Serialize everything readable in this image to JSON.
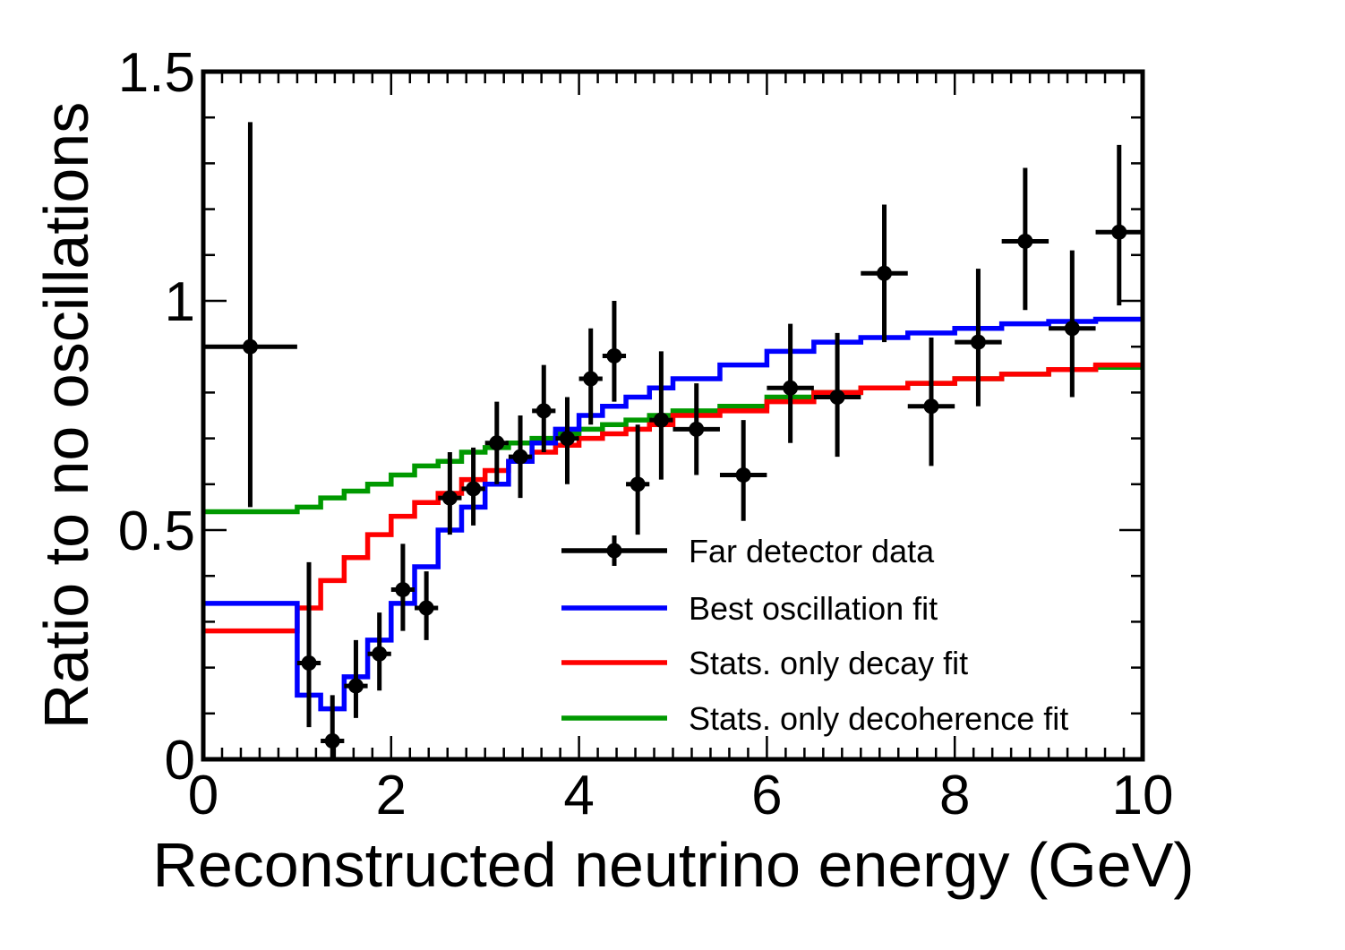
{
  "chart_data": {
    "type": "histogram_with_errorbars",
    "xlabel": "Reconstructed neutrino energy (GeV)",
    "ylabel": "Ratio to no oscillations",
    "xlim": [
      0,
      10
    ],
    "ylim": [
      0,
      1.5
    ],
    "x_ticks": [
      0,
      2,
      4,
      6,
      8,
      10
    ],
    "x_tick_labels": [
      "0",
      "2",
      "4",
      "6",
      "8",
      "10"
    ],
    "y_ticks": [
      0,
      0.5,
      1,
      1.5
    ],
    "y_tick_labels": [
      "0",
      "0.5",
      "1",
      "1.5"
    ],
    "legend_position": "bottom-right",
    "data_points": {
      "name": "Far detector data",
      "color": "#000000",
      "points": [
        {
          "x": 0.5,
          "xerr": 0.5,
          "y": 0.9,
          "yerr_low": 0.35,
          "yerr_high": 0.49
        },
        {
          "x": 1.125,
          "xerr": 0.125,
          "y": 0.21,
          "yerr_low": 0.14,
          "yerr_high": 0.22
        },
        {
          "x": 1.375,
          "xerr": 0.125,
          "y": 0.04,
          "yerr_low": 0.04,
          "yerr_high": 0.1
        },
        {
          "x": 1.625,
          "xerr": 0.125,
          "y": 0.16,
          "yerr_low": 0.07,
          "yerr_high": 0.1
        },
        {
          "x": 1.875,
          "xerr": 0.125,
          "y": 0.23,
          "yerr_low": 0.08,
          "yerr_high": 0.09
        },
        {
          "x": 2.125,
          "xerr": 0.125,
          "y": 0.37,
          "yerr_low": 0.09,
          "yerr_high": 0.1
        },
        {
          "x": 2.375,
          "xerr": 0.125,
          "y": 0.33,
          "yerr_low": 0.07,
          "yerr_high": 0.08
        },
        {
          "x": 2.625,
          "xerr": 0.125,
          "y": 0.57,
          "yerr_low": 0.08,
          "yerr_high": 0.1
        },
        {
          "x": 2.875,
          "xerr": 0.125,
          "y": 0.59,
          "yerr_low": 0.08,
          "yerr_high": 0.09
        },
        {
          "x": 3.125,
          "xerr": 0.125,
          "y": 0.69,
          "yerr_low": 0.09,
          "yerr_high": 0.09
        },
        {
          "x": 3.375,
          "xerr": 0.125,
          "y": 0.66,
          "yerr_low": 0.09,
          "yerr_high": 0.09
        },
        {
          "x": 3.625,
          "xerr": 0.125,
          "y": 0.76,
          "yerr_low": 0.09,
          "yerr_high": 0.1
        },
        {
          "x": 3.875,
          "xerr": 0.125,
          "y": 0.7,
          "yerr_low": 0.1,
          "yerr_high": 0.09
        },
        {
          "x": 4.125,
          "xerr": 0.125,
          "y": 0.83,
          "yerr_low": 0.1,
          "yerr_high": 0.11
        },
        {
          "x": 4.375,
          "xerr": 0.125,
          "y": 0.88,
          "yerr_low": 0.1,
          "yerr_high": 0.12
        },
        {
          "x": 4.625,
          "xerr": 0.125,
          "y": 0.6,
          "yerr_low": 0.11,
          "yerr_high": 0.13
        },
        {
          "x": 4.875,
          "xerr": 0.125,
          "y": 0.74,
          "yerr_low": 0.13,
          "yerr_high": 0.15
        },
        {
          "x": 5.25,
          "xerr": 0.25,
          "y": 0.72,
          "yerr_low": 0.1,
          "yerr_high": 0.1
        },
        {
          "x": 5.75,
          "xerr": 0.25,
          "y": 0.62,
          "yerr_low": 0.1,
          "yerr_high": 0.12
        },
        {
          "x": 6.25,
          "xerr": 0.25,
          "y": 0.81,
          "yerr_low": 0.12,
          "yerr_high": 0.14
        },
        {
          "x": 6.75,
          "xerr": 0.25,
          "y": 0.79,
          "yerr_low": 0.13,
          "yerr_high": 0.14
        },
        {
          "x": 7.25,
          "xerr": 0.25,
          "y": 1.06,
          "yerr_low": 0.15,
          "yerr_high": 0.15
        },
        {
          "x": 7.75,
          "xerr": 0.25,
          "y": 0.77,
          "yerr_low": 0.13,
          "yerr_high": 0.15
        },
        {
          "x": 8.25,
          "xerr": 0.25,
          "y": 0.91,
          "yerr_low": 0.14,
          "yerr_high": 0.16
        },
        {
          "x": 8.75,
          "xerr": 0.25,
          "y": 1.13,
          "yerr_low": 0.15,
          "yerr_high": 0.16
        },
        {
          "x": 9.25,
          "xerr": 0.25,
          "y": 0.94,
          "yerr_low": 0.15,
          "yerr_high": 0.17
        },
        {
          "x": 9.75,
          "xerr": 0.25,
          "y": 1.15,
          "yerr_low": 0.16,
          "yerr_high": 0.19
        }
      ]
    },
    "series": [
      {
        "name": "Best oscillation fit",
        "color": "#0000ff",
        "bin_edges": [
          0,
          1,
          1.25,
          1.5,
          1.75,
          2,
          2.25,
          2.5,
          2.75,
          3,
          3.25,
          3.5,
          3.75,
          4,
          4.25,
          4.5,
          4.75,
          5,
          5.5,
          6,
          6.5,
          7,
          7.5,
          8,
          8.5,
          9,
          9.5,
          10
        ],
        "values": [
          0.34,
          0.14,
          0.11,
          0.18,
          0.26,
          0.34,
          0.42,
          0.5,
          0.55,
          0.6,
          0.65,
          0.69,
          0.72,
          0.75,
          0.77,
          0.79,
          0.81,
          0.83,
          0.86,
          0.89,
          0.91,
          0.92,
          0.93,
          0.94,
          0.95,
          0.955,
          0.96
        ]
      },
      {
        "name": "Stats. only decay fit",
        "color": "#ff0000",
        "bin_edges": [
          0,
          1,
          1.25,
          1.5,
          1.75,
          2,
          2.25,
          2.5,
          2.75,
          3,
          3.25,
          3.5,
          3.75,
          4,
          4.25,
          4.5,
          4.75,
          5,
          5.5,
          6,
          6.5,
          7,
          7.5,
          8,
          8.5,
          9,
          9.5,
          10
        ],
        "values": [
          0.28,
          0.33,
          0.39,
          0.44,
          0.49,
          0.53,
          0.56,
          0.58,
          0.61,
          0.63,
          0.65,
          0.67,
          0.685,
          0.7,
          0.71,
          0.72,
          0.73,
          0.75,
          0.76,
          0.78,
          0.8,
          0.81,
          0.82,
          0.83,
          0.84,
          0.85,
          0.86
        ]
      },
      {
        "name": "Stats. only decoherence fit",
        "color": "#009900",
        "bin_edges": [
          0,
          1,
          1.25,
          1.5,
          1.75,
          2,
          2.25,
          2.5,
          2.75,
          3,
          3.25,
          3.5,
          3.75,
          4,
          4.25,
          4.5,
          4.75,
          5,
          5.5,
          6,
          6.5,
          7,
          7.5,
          8,
          8.5,
          9,
          9.5,
          10
        ],
        "values": [
          0.54,
          0.55,
          0.57,
          0.585,
          0.6,
          0.62,
          0.64,
          0.65,
          0.67,
          0.68,
          0.69,
          0.7,
          0.71,
          0.72,
          0.73,
          0.74,
          0.75,
          0.76,
          0.77,
          0.79,
          0.8,
          0.81,
          0.82,
          0.83,
          0.84,
          0.85,
          0.855
        ]
      }
    ],
    "legend": [
      {
        "label": "Far detector data",
        "kind": "data"
      },
      {
        "label": "Best oscillation fit",
        "kind": "line"
      },
      {
        "label": "Stats. only decay fit",
        "kind": "line"
      },
      {
        "label": "Stats. only decoherence fit",
        "kind": "line"
      }
    ]
  }
}
